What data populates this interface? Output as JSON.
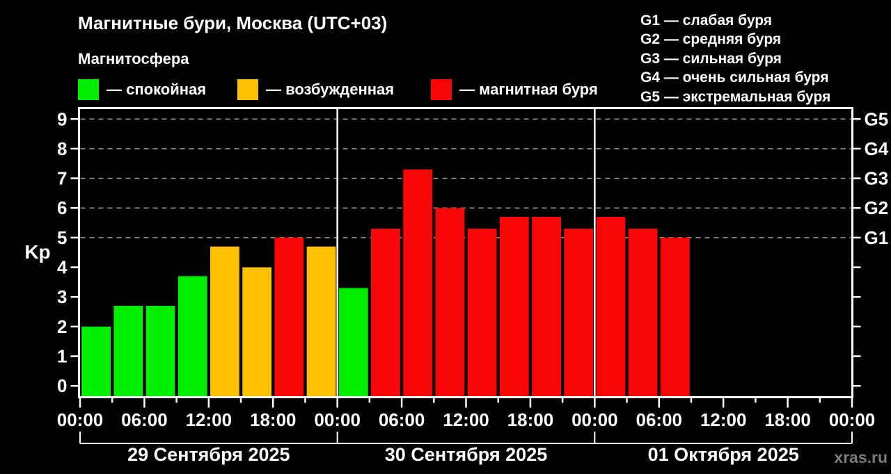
{
  "header": {
    "title": "Магнитные бури, Москва (UTC+03)",
    "subtitle": "Магнитосфера"
  },
  "magnetosphere_legend": [
    {
      "label": "— спокойная",
      "level": "quiet"
    },
    {
      "label": "— возбужденная",
      "level": "excited"
    },
    {
      "label": "— магнитная буря",
      "level": "storm"
    }
  ],
  "storm_scale": [
    "G1 — слабая буря",
    "G2 — средняя буря",
    "G3 — сильная буря",
    "G4 — очень сильная буря",
    "G5 — экстремальная буря"
  ],
  "watermark": "xras.ru",
  "chart_data": {
    "type": "bar",
    "title": "Магнитные бури, Москва (UTC+03)",
    "ylabel": "Kp",
    "ylim": [
      0,
      9
    ],
    "yticks": [
      0,
      1,
      2,
      3,
      4,
      5,
      6,
      7,
      8,
      9
    ],
    "grid_levels": [
      5,
      6,
      7,
      8,
      9
    ],
    "right_axis": [
      {
        "kp": 5,
        "label": "G1"
      },
      {
        "kp": 6,
        "label": "G2"
      },
      {
        "kp": 7,
        "label": "G3"
      },
      {
        "kp": 8,
        "label": "G4"
      },
      {
        "kp": 9,
        "label": "G5"
      }
    ],
    "hours_per_bar": 3,
    "x_tick_labels": [
      "00:00",
      "06:00",
      "12:00",
      "18:00",
      "00:00",
      "06:00",
      "12:00",
      "18:00",
      "00:00",
      "06:00",
      "12:00",
      "18:00",
      "00:00"
    ],
    "levels": {
      "quiet": "#00ee00",
      "excited": "#ffc000",
      "storm": "#fa0505"
    },
    "grid_color": "#999999",
    "days": [
      {
        "date": "29 Сентября 2025",
        "bars": [
          {
            "kp": 2.0,
            "level": "quiet"
          },
          {
            "kp": 2.7,
            "level": "quiet"
          },
          {
            "kp": 2.7,
            "level": "quiet"
          },
          {
            "kp": 3.7,
            "level": "quiet"
          },
          {
            "kp": 4.7,
            "level": "excited"
          },
          {
            "kp": 4.0,
            "level": "excited"
          },
          {
            "kp": 5.0,
            "level": "storm"
          },
          {
            "kp": 4.7,
            "level": "excited"
          }
        ]
      },
      {
        "date": "30 Сентября 2025",
        "bars": [
          {
            "kp": 3.3,
            "level": "quiet"
          },
          {
            "kp": 5.3,
            "level": "storm"
          },
          {
            "kp": 7.3,
            "level": "storm"
          },
          {
            "kp": 6.0,
            "level": "storm"
          },
          {
            "kp": 5.3,
            "level": "storm"
          },
          {
            "kp": 5.7,
            "level": "storm"
          },
          {
            "kp": 5.7,
            "level": "storm"
          },
          {
            "kp": 5.3,
            "level": "storm"
          }
        ]
      },
      {
        "date": "01 Октября 2025",
        "bars": [
          {
            "kp": 5.7,
            "level": "storm"
          },
          {
            "kp": 5.3,
            "level": "storm"
          },
          {
            "kp": 5.0,
            "level": "storm"
          }
        ]
      }
    ]
  }
}
